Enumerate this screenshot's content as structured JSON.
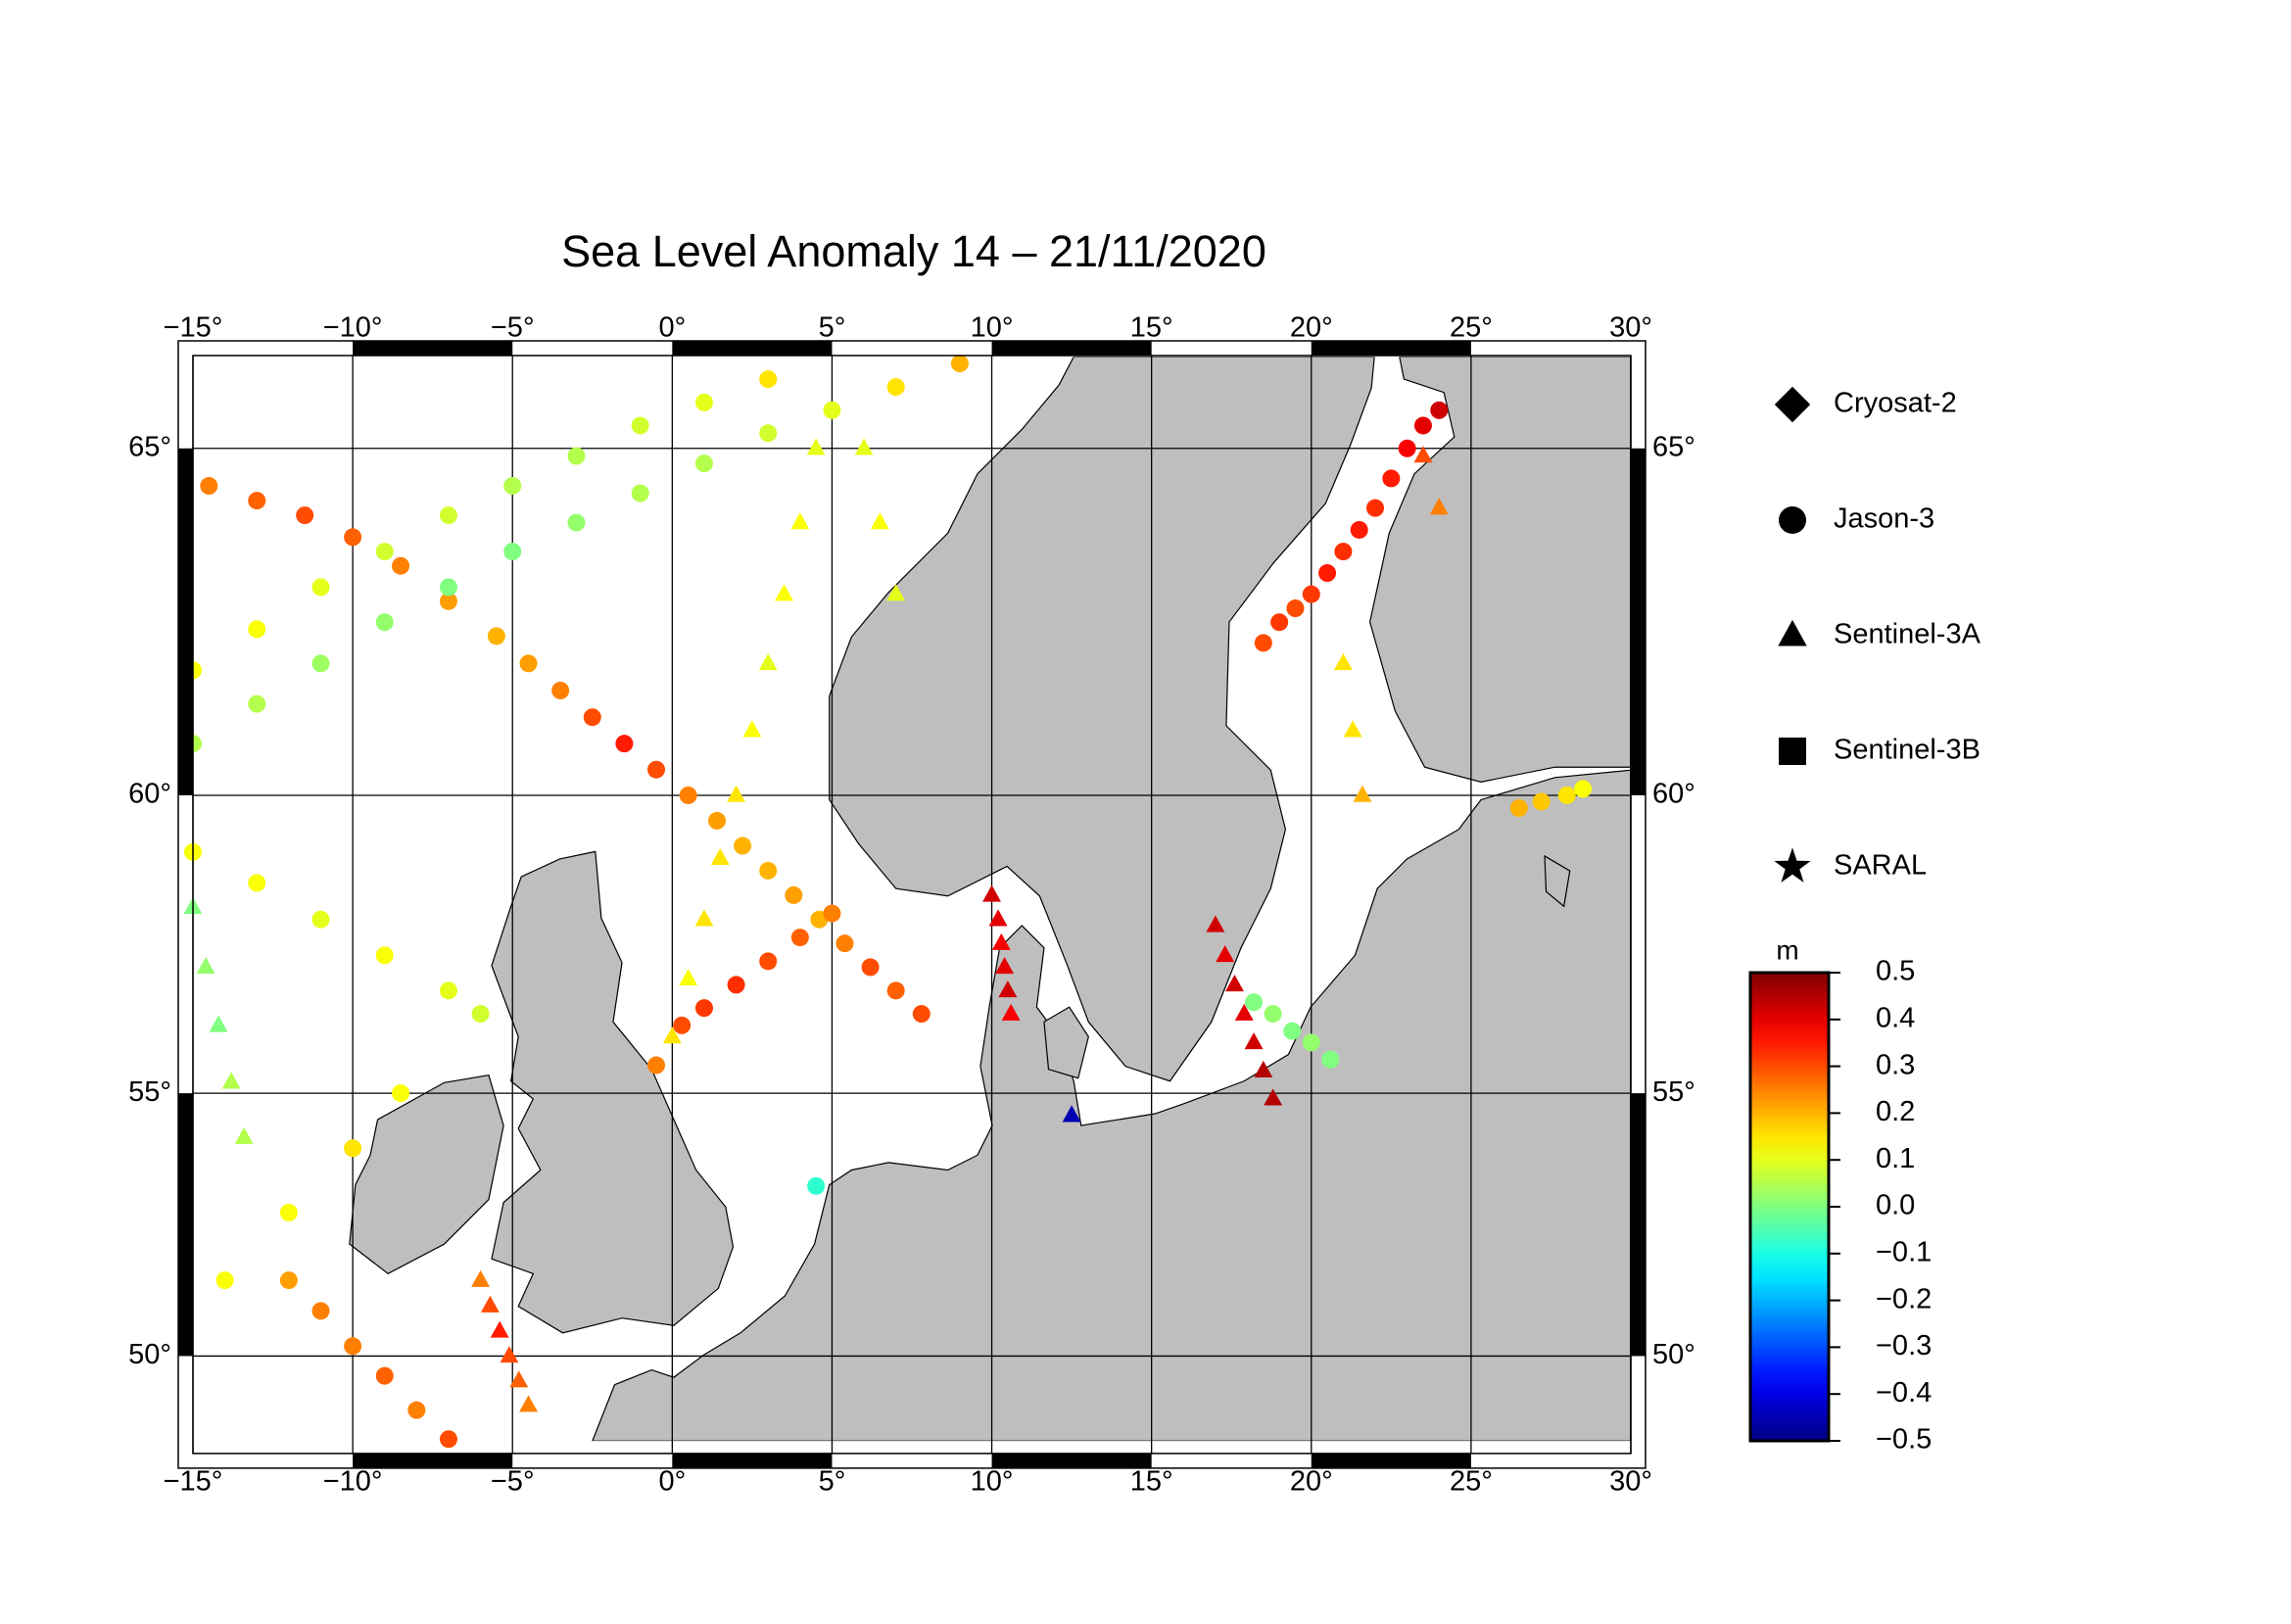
{
  "chart_data": {
    "type": "map",
    "title": "Sea Level Anomaly 14 – 21/11/2020",
    "xlim": [
      -15,
      30
    ],
    "ylim": [
      48,
      66.2
    ],
    "xticks": [
      {
        "value": -15,
        "label": "−15°"
      },
      {
        "value": -10,
        "label": "−10°"
      },
      {
        "value": -5,
        "label": "−5°"
      },
      {
        "value": 0,
        "label": "0°"
      },
      {
        "value": 5,
        "label": "5°"
      },
      {
        "value": 10,
        "label": "10°"
      },
      {
        "value": 15,
        "label": "15°"
      },
      {
        "value": 20,
        "label": "20°"
      },
      {
        "value": 25,
        "label": "25°"
      },
      {
        "value": 30,
        "label": "30°"
      }
    ],
    "yticks": [
      {
        "value": 50,
        "label": "50°"
      },
      {
        "value": 55,
        "label": "55°"
      },
      {
        "value": 60,
        "label": "60°"
      },
      {
        "value": 65,
        "label": "65°"
      }
    ],
    "grid": true,
    "colorbar": {
      "unit": "m",
      "lim": [
        -0.5,
        0.5
      ],
      "ticks": [
        0.5,
        0.4,
        0.3,
        0.2,
        0.1,
        {
          "value": 0,
          "label": "0.0"
        },
        {
          "value": -0.1,
          "label": "−0.1"
        },
        {
          "value": -0.2,
          "label": "−0.2"
        },
        {
          "value": -0.3,
          "label": "−0.3"
        },
        {
          "value": -0.4,
          "label": "−0.4"
        },
        {
          "value": -0.5,
          "label": "−0.5"
        }
      ]
    },
    "series": [
      {
        "name": "Cryosat-2",
        "marker": "diamond",
        "lon": [],
        "lat": [],
        "values": []
      },
      {
        "name": "Jason-3",
        "marker": "circle",
        "lon": [
          7.8,
          7,
          6.2,
          5.4,
          4.6,
          3.8,
          3,
          2.2,
          1.4,
          0.5,
          -0.5,
          -1.5,
          -2.5,
          -3.5,
          -4.5,
          -5.5,
          -7,
          -8.5,
          -10,
          -11.5,
          -13,
          -14.5,
          -15,
          -13,
          -11,
          -9,
          -7,
          -5,
          -3,
          -1,
          1,
          3,
          5,
          7,
          9,
          -15,
          -13,
          -11,
          -9,
          -7,
          -5,
          -3,
          -1,
          1,
          3,
          -0.5,
          0.3,
          1,
          2,
          3,
          4,
          5,
          18.5,
          19,
          19.5,
          20,
          20.5,
          21,
          21.5,
          22,
          22.5,
          23,
          23.5,
          24,
          18.2,
          18.8,
          19.4,
          20,
          20.6,
          -12,
          -11,
          -10,
          -9,
          -8,
          -7,
          -14,
          -12,
          -10,
          -8.5,
          -15,
          -13,
          -11,
          -9,
          -7,
          -6,
          26.5,
          27.2,
          28,
          28.5,
          4.5
        ],
        "lat": [
          56.4,
          56.8,
          57.2,
          57.6,
          58,
          58.4,
          58.8,
          59.2,
          59.6,
          60,
          60.4,
          60.8,
          61.2,
          61.6,
          62,
          62.4,
          62.9,
          63.4,
          63.8,
          64.1,
          64.3,
          64.5,
          60.8,
          61.4,
          62,
          62.6,
          63.1,
          63.6,
          64,
          64.4,
          64.8,
          65.2,
          65.5,
          65.8,
          66.1,
          61.9,
          62.5,
          63.1,
          63.6,
          64.1,
          64.5,
          64.9,
          65.3,
          65.6,
          65.9,
          55.5,
          56.2,
          56.5,
          56.9,
          57.3,
          57.7,
          58.1,
          62.3,
          62.6,
          62.8,
          63,
          63.3,
          63.6,
          63.9,
          64.2,
          64.6,
          65,
          65.3,
          65.5,
          56.6,
          56.4,
          56.1,
          55.9,
          55.6,
          51.5,
          50.9,
          50.2,
          49.6,
          48.9,
          48.3,
          51.5,
          52.8,
          54,
          55,
          59.1,
          58.6,
          58,
          57.4,
          56.8,
          56.4,
          59.8,
          59.9,
          60,
          60.1,
          53.3
        ],
        "values": [
          0.3,
          0.28,
          0.3,
          0.25,
          0.2,
          0.22,
          0.2,
          0.2,
          0.22,
          0.25,
          0.3,
          0.35,
          0.3,
          0.25,
          0.22,
          0.2,
          0.22,
          0.25,
          0.28,
          0.3,
          0.28,
          0.25,
          0.05,
          0.05,
          0.03,
          0.02,
          0,
          0,
          0.02,
          0.05,
          0.05,
          0.08,
          0.1,
          0.15,
          0.2,
          0.12,
          0.12,
          0.1,
          0.08,
          0.08,
          0.05,
          0.05,
          0.08,
          0.1,
          0.15,
          0.25,
          0.3,
          0.32,
          0.33,
          0.3,
          0.28,
          0.25,
          0.3,
          0.32,
          0.3,
          0.32,
          0.35,
          0.33,
          0.35,
          0.33,
          0.35,
          0.38,
          0.4,
          0.42,
          0,
          0.02,
          0,
          0.02,
          0,
          0.22,
          0.25,
          0.25,
          0.28,
          0.25,
          0.3,
          0.12,
          0.12,
          0.15,
          0.12,
          0.12,
          0.12,
          0.1,
          0.12,
          0.1,
          0.08,
          0.2,
          0.18,
          0.15,
          0.12,
          -0.08
        ]
      },
      {
        "name": "Sentinel-3A",
        "marker": "triangle",
        "lon": [
          4.5,
          4,
          3.5,
          3,
          2.5,
          2,
          1.5,
          1,
          0.5,
          0,
          10,
          10.2,
          10.3,
          10.4,
          10.5,
          10.6,
          17,
          17.3,
          17.6,
          17.9,
          18.2,
          18.5,
          18.8,
          -15,
          -14.6,
          -14.2,
          -13.8,
          -13.4,
          12.5,
          -6,
          -5.7,
          -5.4,
          -5.1,
          -4.8,
          -4.5,
          21,
          21.3,
          21.6,
          6,
          6.5,
          7,
          23.5,
          24
        ],
        "lat": [
          65,
          64,
          63,
          62,
          61,
          60,
          59,
          58,
          57,
          56,
          58.4,
          58,
          57.6,
          57.2,
          56.8,
          56.4,
          57.9,
          57.4,
          56.9,
          56.4,
          55.9,
          55.4,
          54.9,
          58.2,
          57.2,
          56.2,
          55.2,
          54.2,
          54.6,
          51.5,
          51,
          50.5,
          50,
          49.5,
          49,
          62,
          61,
          60,
          65,
          64,
          63,
          64.9,
          64.2
        ],
        "values": [
          0.1,
          0.12,
          0.12,
          0.1,
          0.12,
          0.15,
          0.15,
          0.15,
          0.12,
          0.15,
          0.42,
          0.4,
          0.38,
          0.4,
          0.42,
          0.38,
          0.42,
          0.4,
          0.42,
          0.4,
          0.42,
          0.45,
          0.45,
          0,
          0.02,
          0,
          0.05,
          0.05,
          -0.45,
          0.25,
          0.3,
          0.35,
          0.3,
          0.28,
          0.25,
          0.15,
          0.15,
          0.2,
          0.1,
          0.12,
          0.1,
          0.3,
          0.25
        ]
      },
      {
        "name": "Sentinel-3B",
        "marker": "square",
        "lon": [],
        "lat": [],
        "values": []
      },
      {
        "name": "SARAL",
        "marker": "star",
        "lon": [],
        "lat": [],
        "values": []
      }
    ]
  }
}
